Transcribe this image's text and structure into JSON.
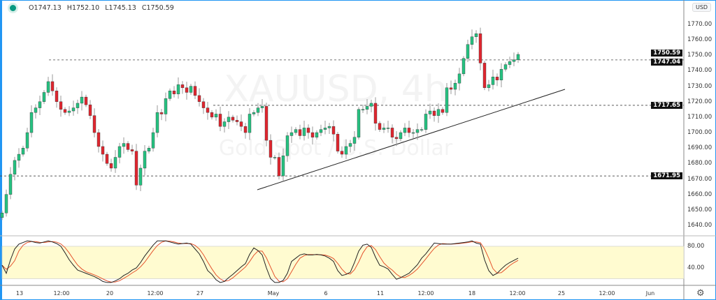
{
  "legend": {
    "open": "O1747.13",
    "high": "H1752.10",
    "low": "L1745.13",
    "close": "C1750.59",
    "status_color": "#089981"
  },
  "watermark": {
    "symbol": "XAUUSD, 4h",
    "description": "Gold Spot / U.S. Dollar"
  },
  "currency_button": "USD",
  "settings_icon": "gear-icon",
  "colors": {
    "up": "#26c281",
    "down": "#e0262f",
    "stoch_k": "#222222",
    "stoch_d": "#e5532d",
    "stoch_band": "#fffbd0"
  },
  "price_axis": {
    "ticks": [
      "1770.00",
      "1760.00",
      "1750.00",
      "1740.00",
      "1730.00",
      "1720.00",
      "1710.00",
      "1700.00",
      "1690.00",
      "1680.00",
      "1670.00",
      "1660.00",
      "1650.00",
      "1640.00"
    ],
    "tags": {
      "last": "1750.59",
      "level1": "1747.04",
      "level2": "1717.65",
      "level3": "1671.95"
    }
  },
  "stoch_axis": {
    "ticks": [
      "80.00",
      "40.00"
    ],
    "band": [
      20,
      80
    ]
  },
  "time_axis": [
    "13",
    "12:00",
    "20",
    "12:00",
    "27",
    "May",
    "6",
    "11",
    "12:00",
    "18",
    "12:00",
    "25",
    "12:00",
    "Jun"
  ],
  "horizontal_levels": [
    1747.04,
    1717.65,
    1671.95
  ],
  "trendline": {
    "from_price": 1654.5,
    "to_price": 1728.8
  },
  "chart_data": {
    "type": "candlestick",
    "last_bar": {
      "open": 1747.13,
      "high": 1752.1,
      "low": 1745.13,
      "close": 1750.59
    },
    "close": [
      1648,
      1660,
      1673,
      1682,
      1686,
      1690,
      1700,
      1713,
      1716,
      1720,
      1726,
      1733,
      1727,
      1720,
      1715,
      1713,
      1714,
      1716,
      1719,
      1723,
      1718,
      1711,
      1700,
      1691,
      1686,
      1680,
      1677,
      1684,
      1691,
      1693,
      1689,
      1688,
      1666,
      1677,
      1688,
      1690,
      1700,
      1713,
      1712,
      1722,
      1727,
      1725,
      1731,
      1729,
      1726,
      1730,
      1724,
      1720,
      1716,
      1713,
      1710,
      1712,
      1704,
      1707,
      1710,
      1708,
      1707,
      1704,
      1700,
      1712,
      1713,
      1716,
      1717,
      1695,
      1684,
      1684,
      1672,
      1685,
      1698,
      1700,
      1702,
      1698,
      1703,
      1700,
      1697,
      1700,
      1702,
      1703,
      1704,
      1699,
      1688,
      1686,
      1691,
      1693,
      1697,
      1715,
      1715,
      1717,
      1719,
      1706,
      1702,
      1703,
      1703,
      1697,
      1696,
      1700,
      1703,
      1700,
      1700,
      1702,
      1702,
      1712,
      1714,
      1711,
      1715,
      1713,
      1729,
      1728,
      1732,
      1738,
      1748,
      1757,
      1762,
      1764,
      1745,
      1729,
      1731,
      1736,
      1734,
      1741,
      1744,
      1746,
      1747.13,
      1750.59
    ],
    "stoch_k": [
      45,
      30,
      55,
      75,
      84,
      87,
      90,
      89,
      87,
      86,
      88,
      90,
      88,
      85,
      80,
      68,
      55,
      45,
      36,
      33,
      30,
      27,
      24,
      20,
      15,
      13,
      13,
      16,
      20,
      26,
      30,
      36,
      40,
      50,
      62,
      72,
      82,
      90,
      90,
      90,
      88,
      86,
      84,
      85,
      86,
      84,
      75,
      66,
      52,
      35,
      28,
      18,
      13,
      15,
      22,
      28,
      35,
      42,
      48,
      65,
      77,
      72,
      64,
      40,
      20,
      13,
      13,
      17,
      30,
      52,
      58,
      64,
      66,
      64,
      64,
      65,
      64,
      62,
      58,
      52,
      35,
      26,
      28,
      32,
      50,
      71,
      82,
      84,
      78,
      60,
      45,
      42,
      38,
      28,
      19,
      22,
      26,
      30,
      38,
      46,
      58,
      66,
      76,
      86,
      85,
      84,
      84,
      84,
      85,
      86,
      87,
      88,
      90,
      86,
      84,
      55,
      35,
      26,
      30,
      38,
      45,
      50,
      54,
      58
    ]
  }
}
